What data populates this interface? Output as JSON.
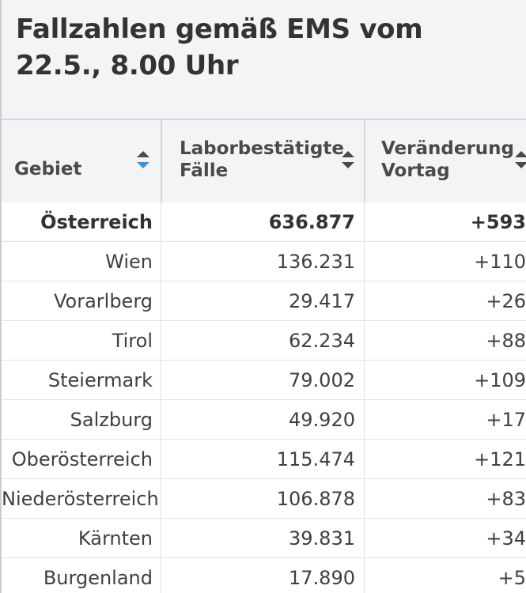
{
  "title": "Fallzahlen gemäß EMS vom 22.5., 8.00 Uhr",
  "colors": {
    "header_bg": "#f3f4f6",
    "border": "#d3d6da",
    "sort_active": "#3d8fe0",
    "sort_inactive": "#4a4a4a",
    "text": "#404040"
  },
  "table": {
    "columns": [
      {
        "label": "Gebiet",
        "sort_icon": "sort-arrows-icon",
        "sort_state": "ascending"
      },
      {
        "label": "Laborbestätigte Fälle",
        "sort_icon": "sort-arrows-icon",
        "sort_state": "none"
      },
      {
        "label": "Veränderung Vortag",
        "sort_icon": "sort-arrows-icon",
        "sort_state": "none"
      }
    ],
    "rows": [
      {
        "gebiet": "Österreich",
        "faelle": "636.877",
        "veraenderung": "+593",
        "bold": true
      },
      {
        "gebiet": "Wien",
        "faelle": "136.231",
        "veraenderung": "+110",
        "bold": false
      },
      {
        "gebiet": "Vorarlberg",
        "faelle": "29.417",
        "veraenderung": "+26",
        "bold": false
      },
      {
        "gebiet": "Tirol",
        "faelle": "62.234",
        "veraenderung": "+88",
        "bold": false
      },
      {
        "gebiet": "Steiermark",
        "faelle": "79.002",
        "veraenderung": "+109",
        "bold": false
      },
      {
        "gebiet": "Salzburg",
        "faelle": "49.920",
        "veraenderung": "+17",
        "bold": false
      },
      {
        "gebiet": "Oberösterreich",
        "faelle": "115.474",
        "veraenderung": "+121",
        "bold": false
      },
      {
        "gebiet": "Niederösterreich",
        "faelle": "106.878",
        "veraenderung": "+83",
        "bold": false
      },
      {
        "gebiet": "Kärnten",
        "faelle": "39.831",
        "veraenderung": "+34",
        "bold": false
      },
      {
        "gebiet": "Burgenland",
        "faelle": "17.890",
        "veraenderung": "+5",
        "bold": false
      }
    ]
  }
}
